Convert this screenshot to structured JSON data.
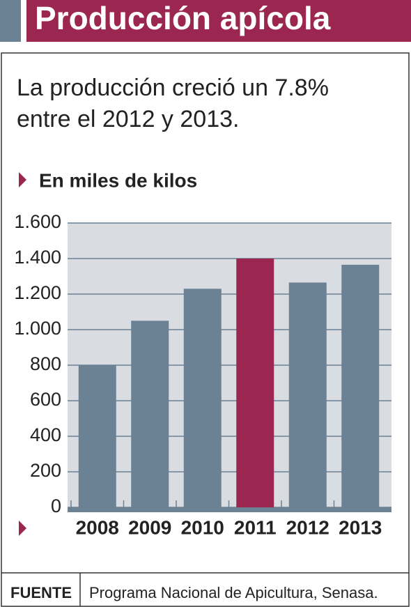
{
  "chart_data": {
    "type": "bar",
    "title": "Producción apícola",
    "subtitle": "La producción creció un 7.8% entre el 2012 y 2013.",
    "unit_label": "En miles de kilos",
    "categories": [
      "2008",
      "2009",
      "2010",
      "2011",
      "2012",
      "2013"
    ],
    "values": [
      800,
      1050,
      1230,
      1400,
      1265,
      1365
    ],
    "colors": [
      "#6b8194",
      "#6b8194",
      "#6b8194",
      "#9b2650",
      "#6b8194",
      "#6b8194"
    ],
    "ylim": [
      0,
      1600
    ],
    "yticks": [
      0,
      200,
      400,
      600,
      800,
      {
        "value": 1000,
        "label": "1.000"
      },
      {
        "value": 1200,
        "label": "1.200"
      },
      {
        "value": 1400,
        "label": "1.400"
      },
      {
        "value": 1600,
        "label": "1.600"
      }
    ],
    "grid": true,
    "source_label": "FUENTE",
    "source": "Programa Nacional de Apicultura, Senasa."
  }
}
